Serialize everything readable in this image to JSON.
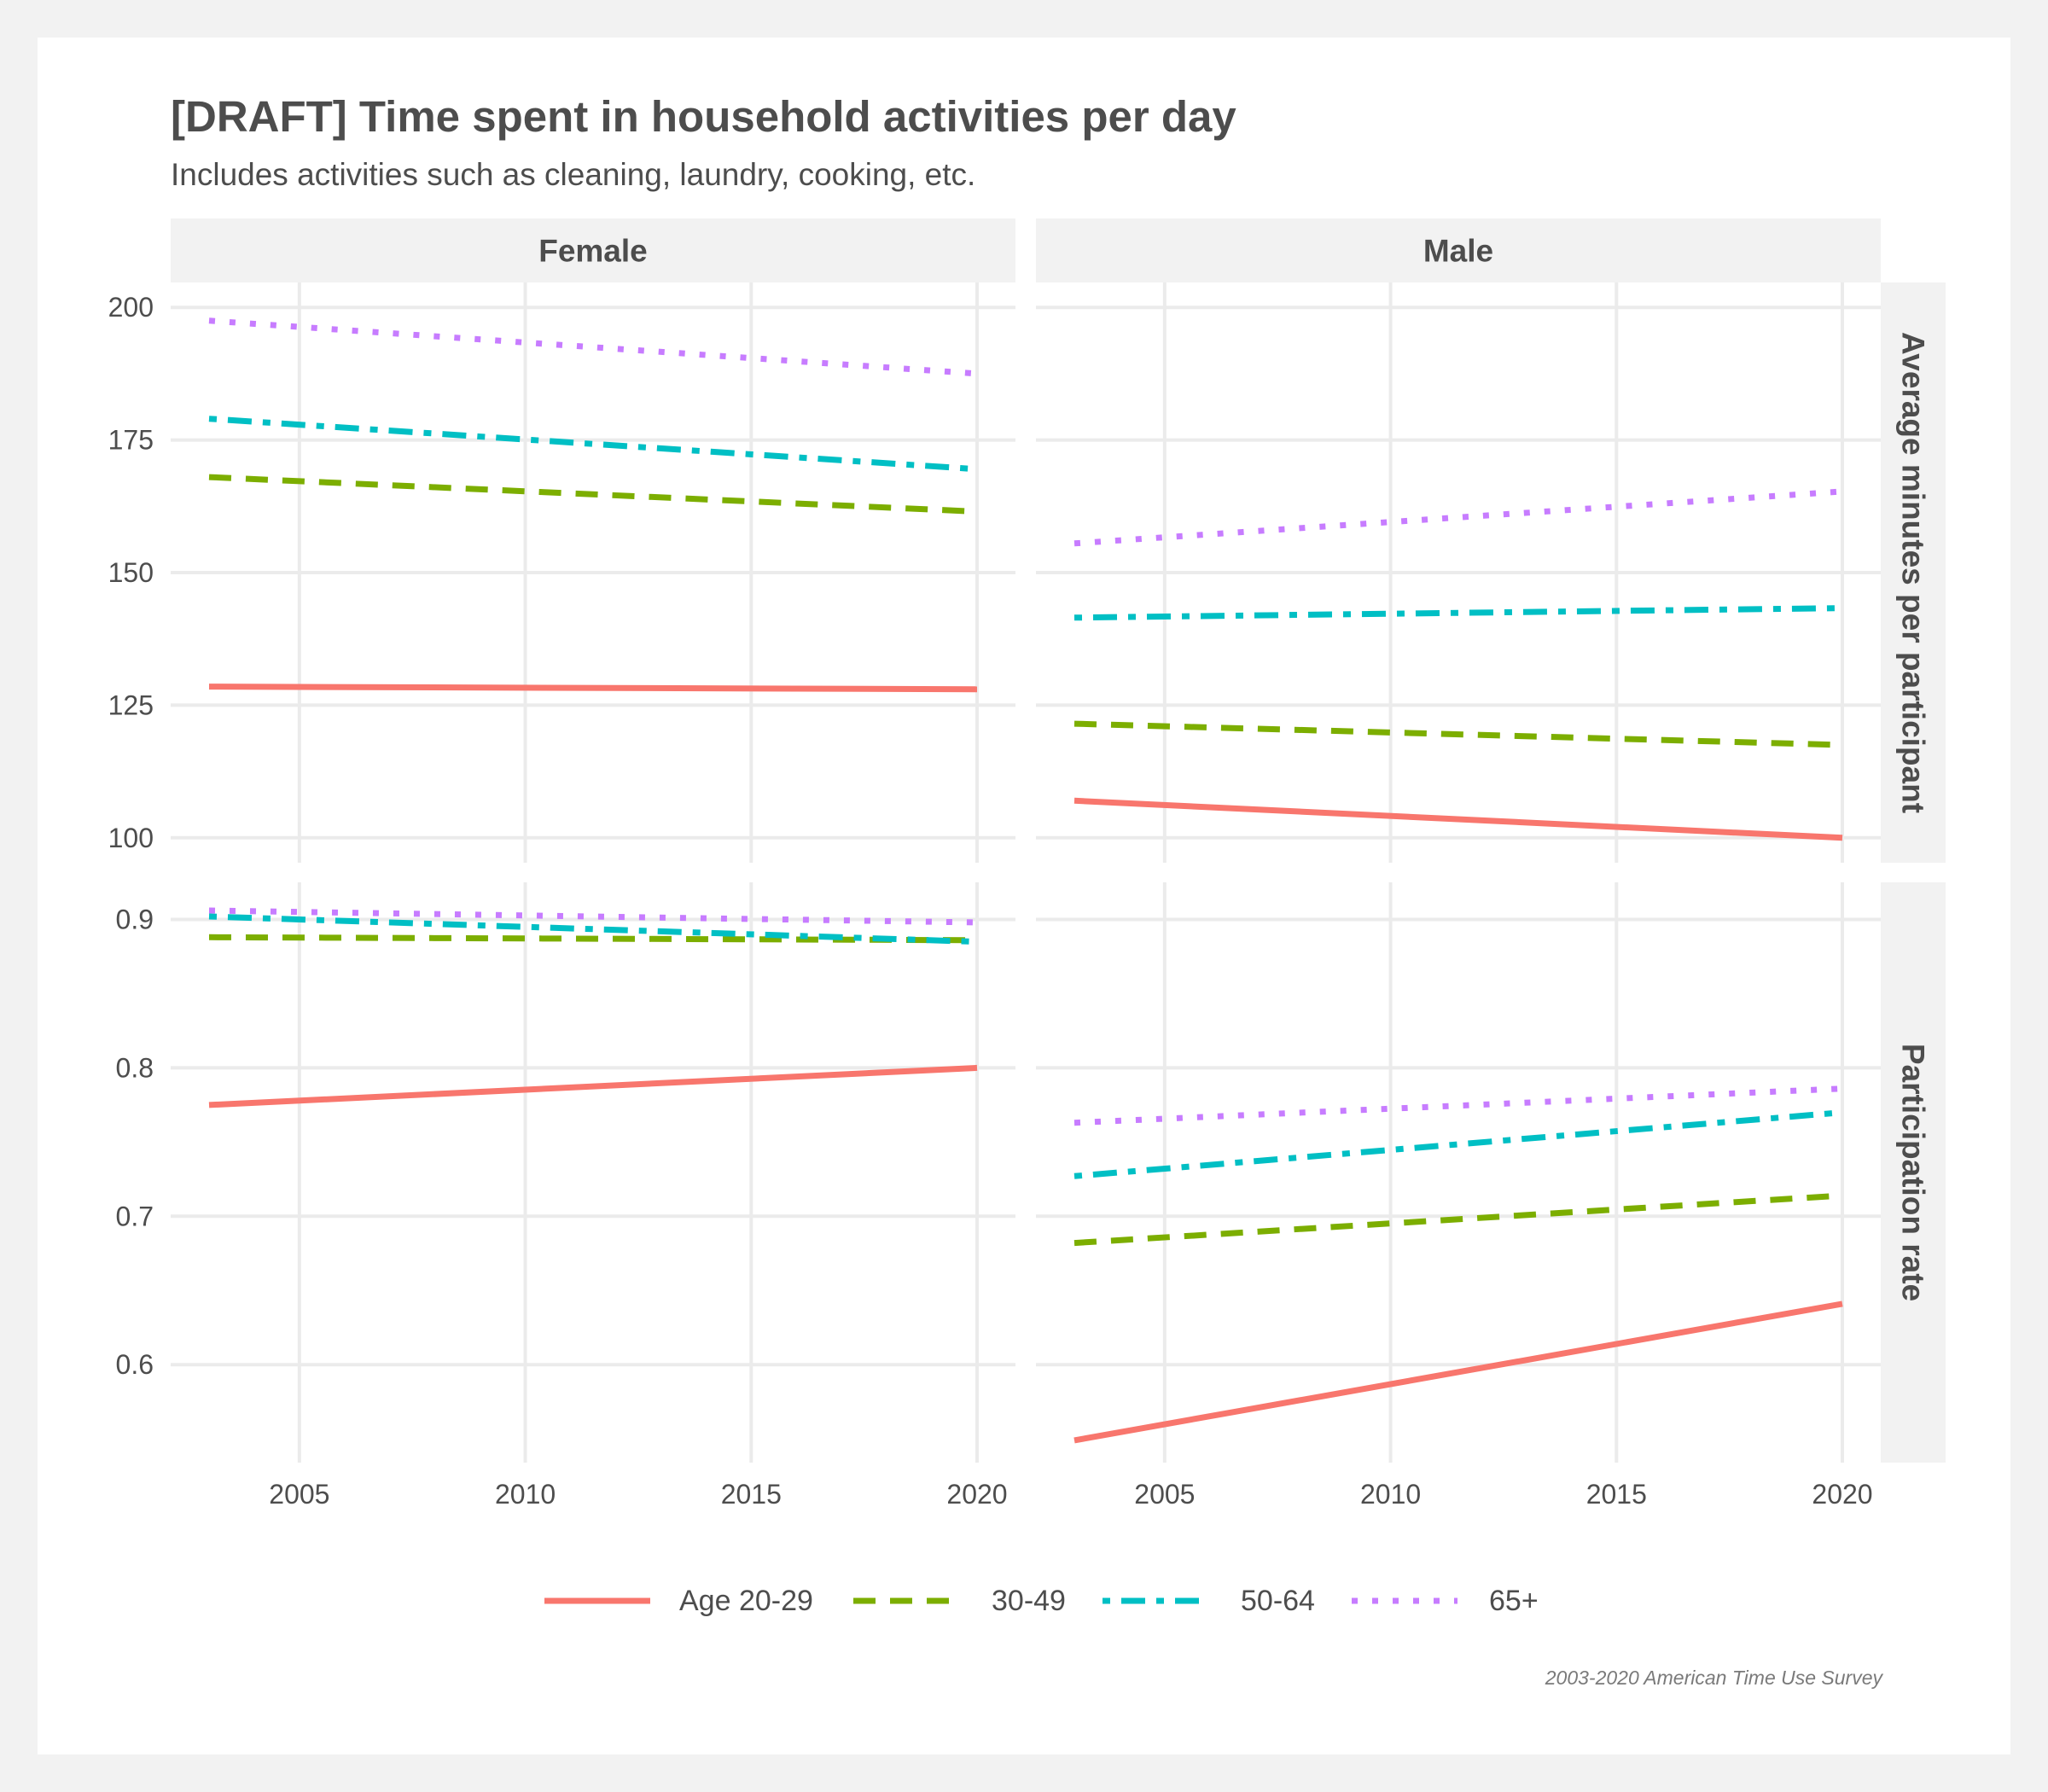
{
  "title": "[DRAFT] Time spent in household activities per day",
  "subtitle": "Includes activities such as cleaning, laundry, cooking, etc.",
  "caption": "2003-2020 American Time Use Survey",
  "colors": {
    "background": "#f2f2f2",
    "panel": "#ffffff",
    "grid": "#ebebeb",
    "strip": "#f2f2f2",
    "text": "#4d4d4d"
  },
  "chart_data": {
    "type": "line",
    "facet_columns": [
      "Female",
      "Male"
    ],
    "facet_rows": [
      "Average minutes per participant",
      "Participation rate"
    ],
    "x_ticks": [
      2005,
      2010,
      2015,
      2020
    ],
    "xlim": [
      2002.15,
      2020.85
    ],
    "grid": true,
    "legend_position": "bottom",
    "legend": [
      {
        "label": "Age 20-29",
        "color": "#f8766d",
        "linetype": "solid"
      },
      {
        "label": "30-49",
        "color": "#7cae00",
        "linetype": "dashed"
      },
      {
        "label": "50-64",
        "color": "#00bfc4",
        "linetype": "dotdash"
      },
      {
        "label": "65+",
        "color": "#c77cff",
        "linetype": "dotted"
      }
    ],
    "rows": [
      {
        "label": "Average minutes per participant",
        "ylim": [
          95.3,
          204.7
        ],
        "y_ticks": [
          100,
          125,
          150,
          175,
          200
        ],
        "y_tick_labels": [
          "100",
          "125",
          "150",
          "175",
          "200"
        ],
        "panels": [
          {
            "facet": "Female",
            "series": [
              {
                "label": "Age 20-29",
                "x": [
                  2003,
                  2020
                ],
                "y": [
                  128.5,
                  128.0
                ]
              },
              {
                "label": "30-49",
                "x": [
                  2003,
                  2020
                ],
                "y": [
                  168.0,
                  161.5
                ]
              },
              {
                "label": "50-64",
                "x": [
                  2003,
                  2020
                ],
                "y": [
                  179.0,
                  169.5
                ]
              },
              {
                "label": "65+",
                "x": [
                  2003,
                  2020
                ],
                "y": [
                  197.5,
                  187.5
                ]
              }
            ]
          },
          {
            "facet": "Male",
            "series": [
              {
                "label": "Age 20-29",
                "x": [
                  2003,
                  2020
                ],
                "y": [
                  107.0,
                  100.0
                ]
              },
              {
                "label": "30-49",
                "x": [
                  2003,
                  2020
                ],
                "y": [
                  121.5,
                  117.5
                ]
              },
              {
                "label": "50-64",
                "x": [
                  2003,
                  2020
                ],
                "y": [
                  141.5,
                  143.3
                ]
              },
              {
                "label": "65+",
                "x": [
                  2003,
                  2020
                ],
                "y": [
                  155.5,
                  165.3
                ]
              }
            ]
          }
        ]
      },
      {
        "label": "Participation rate",
        "ylim": [
          0.534,
          0.925
        ],
        "y_ticks": [
          0.6,
          0.7,
          0.8,
          0.9
        ],
        "y_tick_labels": [
          "0.6",
          "0.7",
          "0.8",
          "0.9"
        ],
        "panels": [
          {
            "facet": "Female",
            "series": [
              {
                "label": "Age 20-29",
                "x": [
                  2003,
                  2020
                ],
                "y": [
                  0.775,
                  0.8
                ]
              },
              {
                "label": "30-49",
                "x": [
                  2003,
                  2020
                ],
                "y": [
                  0.888,
                  0.886
                ]
              },
              {
                "label": "50-64",
                "x": [
                  2003,
                  2020
                ],
                "y": [
                  0.902,
                  0.885
                ]
              },
              {
                "label": "65+",
                "x": [
                  2003,
                  2020
                ],
                "y": [
                  0.906,
                  0.898
                ]
              }
            ]
          },
          {
            "facet": "Male",
            "series": [
              {
                "label": "Age 20-29",
                "x": [
                  2003,
                  2020
                ],
                "y": [
                  0.549,
                  0.641
                ]
              },
              {
                "label": "30-49",
                "x": [
                  2003,
                  2020
                ],
                "y": [
                  0.682,
                  0.714
                ]
              },
              {
                "label": "50-64",
                "x": [
                  2003,
                  2020
                ],
                "y": [
                  0.727,
                  0.77
                ]
              },
              {
                "label": "65+",
                "x": [
                  2003,
                  2020
                ],
                "y": [
                  0.763,
                  0.786
                ]
              }
            ]
          }
        ]
      }
    ]
  }
}
